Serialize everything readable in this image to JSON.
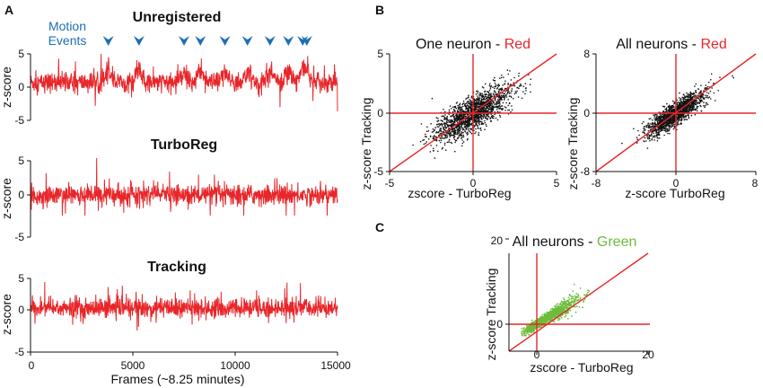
{
  "panels": {
    "a": "A",
    "b": "B",
    "c": "C"
  },
  "colors": {
    "trace": "#e8262a",
    "line": "#e8262a",
    "scatter_dark": "#111111",
    "scatter_green": "#6cbd3c",
    "arrow": "#1f6fb2",
    "annot": "#1f6fb2",
    "green_word": "#6cbd3c"
  },
  "chart_data": [
    {
      "id": "unregistered",
      "type": "line",
      "title": "Unregistered",
      "ylabel": "z-score",
      "ylim": [
        -5,
        5
      ],
      "yticks": [
        "5",
        "0",
        "-5"
      ],
      "xlim": [
        0,
        15000
      ],
      "annotation": {
        "line1": "Motion",
        "line2": "Events"
      },
      "motion_events": [
        3800,
        5300,
        7500,
        8300,
        9500,
        10600,
        11700,
        12600,
        13300,
        13500
      ]
    },
    {
      "id": "turboreg",
      "type": "line",
      "title": "TurboReg",
      "ylabel": "z-score",
      "ylim": [
        -5,
        5
      ],
      "yticks": [
        "5",
        "0",
        "-5"
      ],
      "xlim": [
        0,
        15000
      ]
    },
    {
      "id": "tracking",
      "type": "line",
      "title": "Tracking",
      "ylabel": "z-score",
      "ylim": [
        -5,
        5
      ],
      "yticks": [
        "5",
        "0",
        "-5"
      ],
      "xlim": [
        0,
        15000
      ],
      "xticks": [
        "0",
        "5000",
        "10000",
        "15000"
      ],
      "xlabel": "Frames (~8.25 minutes)"
    },
    {
      "id": "one-neuron",
      "type": "scatter",
      "title": "One neuron - ",
      "title_color_word": "Red",
      "xlabel": "zscore - TurboReg",
      "ylabel": "z-score Tracking",
      "xlim": [
        -5,
        5
      ],
      "ylim": [
        -5,
        5
      ],
      "xticks": [
        "-5",
        "0",
        "5"
      ],
      "yticks": [
        "5",
        "0",
        "-5"
      ]
    },
    {
      "id": "all-neurons-red",
      "type": "scatter",
      "title": "All neurons - ",
      "title_color_word": "Red",
      "xlabel": "z-score TurboReg",
      "ylabel": "z-score Tracking",
      "xlim": [
        -8,
        8
      ],
      "ylim": [
        -8,
        8
      ],
      "xticks": [
        "-8",
        "0",
        "8"
      ],
      "yticks": [
        "8",
        "0",
        "-8"
      ]
    },
    {
      "id": "all-neurons-green",
      "type": "scatter",
      "title": "All neurons - ",
      "title_color_word": "Green",
      "xlabel": "zscore - TurboReg",
      "ylabel": "z-score Tracking",
      "xlim": [
        -5,
        20
      ],
      "ylim": [
        -5,
        20
      ],
      "xticks": [
        "0",
        "20"
      ],
      "yticks": [
        "20",
        "0"
      ]
    }
  ]
}
